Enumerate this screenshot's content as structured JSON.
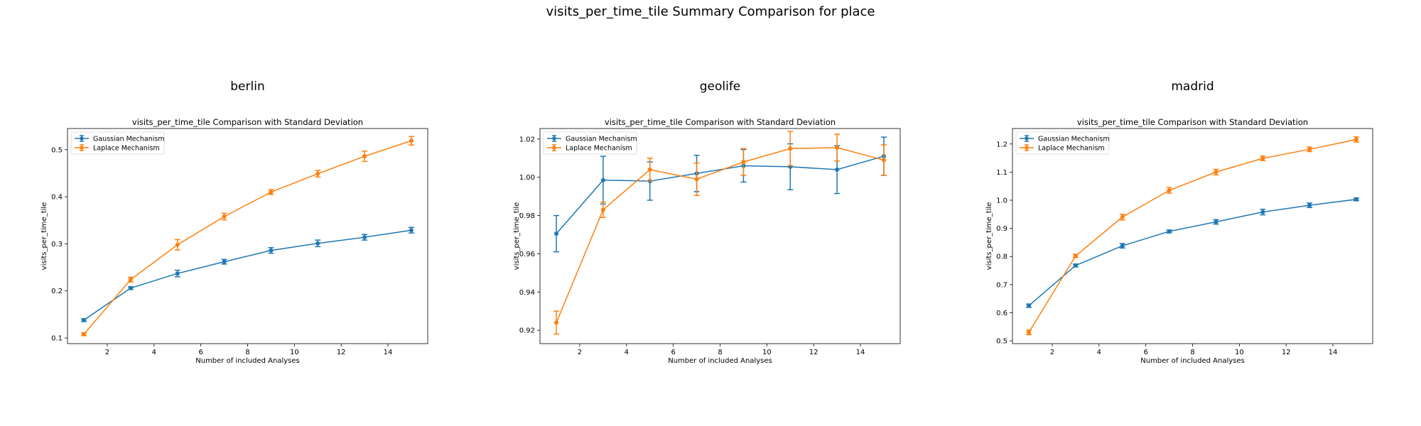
{
  "title": "visits_per_time_tile Summary Comparison for place",
  "chart_data": [
    {
      "type": "line",
      "heading": "berlin",
      "title": "visits_per_time_tile Comparison with Standard Deviation",
      "xlabel": "Number of included Analyses",
      "ylabel": "visits_per_time_tile",
      "xlim": [
        0.3,
        15.7
      ],
      "ylim": [
        0.088,
        0.545
      ],
      "xticks": [
        2,
        4,
        6,
        8,
        10,
        12,
        14
      ],
      "yticks": [
        0.1,
        0.2,
        0.3,
        0.4,
        0.5
      ],
      "ytick_decimals": 1,
      "legend": "top-left",
      "x": [
        1,
        3,
        5,
        7,
        9,
        11,
        13,
        15
      ],
      "series": [
        {
          "name": "Gaussian Mechanism",
          "color": "#1f77b4",
          "values": [
            0.138,
            0.206,
            0.237,
            0.262,
            0.286,
            0.301,
            0.314,
            0.329
          ],
          "std": [
            0.003,
            0.003,
            0.007,
            0.005,
            0.006,
            0.007,
            0.006,
            0.006
          ]
        },
        {
          "name": "Laplace Mechanism",
          "color": "#ff7f0e",
          "values": [
            0.108,
            0.224,
            0.298,
            0.358,
            0.41,
            0.449,
            0.486,
            0.519
          ],
          "std": [
            0.003,
            0.005,
            0.011,
            0.007,
            0.005,
            0.007,
            0.011,
            0.009
          ]
        }
      ]
    },
    {
      "type": "line",
      "heading": "geolife",
      "title": "visits_per_time_tile Comparison with Standard Deviation",
      "xlabel": "Number of included Analyses",
      "ylabel": "visits_per_time_tile",
      "xlim": [
        0.3,
        15.7
      ],
      "ylim": [
        0.913,
        1.0255
      ],
      "xticks": [
        2,
        4,
        6,
        8,
        10,
        12,
        14
      ],
      "yticks": [
        0.92,
        0.94,
        0.96,
        0.98,
        1.0,
        1.02
      ],
      "ytick_decimals": 2,
      "legend": "top-left",
      "x": [
        1,
        3,
        5,
        7,
        9,
        11,
        13,
        15
      ],
      "series": [
        {
          "name": "Gaussian Mechanism",
          "color": "#1f77b4",
          "values": [
            0.9705,
            0.9985,
            0.998,
            1.002,
            1.006,
            1.0055,
            1.004,
            1.011
          ],
          "std": [
            0.0095,
            0.0125,
            0.01,
            0.0095,
            0.0085,
            0.012,
            0.0125,
            0.01
          ]
        },
        {
          "name": "Laplace Mechanism",
          "color": "#ff7f0e",
          "values": [
            0.924,
            0.983,
            1.004,
            0.999,
            1.008,
            1.015,
            1.0155,
            1.009
          ],
          "std": [
            0.006,
            0.004,
            0.006,
            0.0085,
            0.007,
            0.009,
            0.007,
            0.008
          ]
        }
      ]
    },
    {
      "type": "line",
      "heading": "madrid",
      "title": "visits_per_time_tile Comparison with Standard Deviation",
      "xlabel": "Number of included Analyses",
      "ylabel": "visits_per_time_tile",
      "xlim": [
        0.3,
        15.7
      ],
      "ylim": [
        0.49,
        1.255
      ],
      "xticks": [
        2,
        4,
        6,
        8,
        10,
        12,
        14
      ],
      "yticks": [
        0.5,
        0.6,
        0.7,
        0.8,
        0.9,
        1.0,
        1.1,
        1.2
      ],
      "ytick_decimals": 1,
      "legend": "top-left",
      "x": [
        1,
        3,
        5,
        7,
        9,
        11,
        13,
        15
      ],
      "series": [
        {
          "name": "Gaussian Mechanism",
          "color": "#1f77b4",
          "values": [
            0.625,
            0.768,
            0.838,
            0.889,
            0.923,
            0.958,
            0.982,
            1.003
          ],
          "std": [
            0.006,
            0.005,
            0.008,
            0.005,
            0.008,
            0.01,
            0.008,
            0.005
          ]
        },
        {
          "name": "Laplace Mechanism",
          "color": "#ff7f0e",
          "values": [
            0.53,
            0.802,
            0.94,
            1.035,
            1.1,
            1.149,
            1.181,
            1.216
          ],
          "std": [
            0.008,
            0.006,
            0.01,
            0.01,
            0.01,
            0.008,
            0.008,
            0.009
          ]
        }
      ]
    }
  ]
}
